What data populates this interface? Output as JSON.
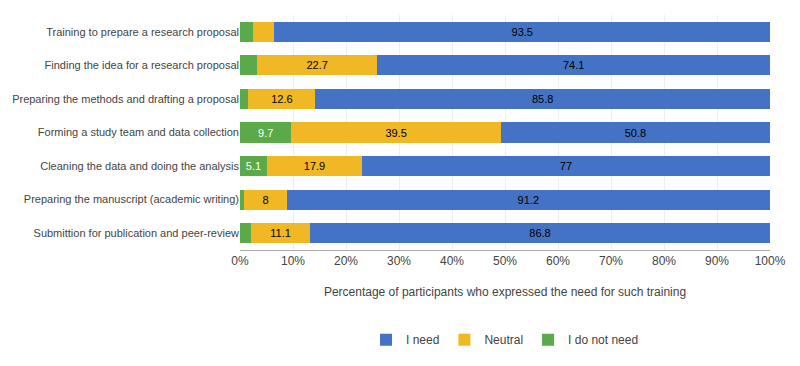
{
  "chart_data": {
    "type": "bar",
    "orientation": "horizontal",
    "stacked": true,
    "categories": [
      "Training to prepare a research proposal",
      "Finding the idea for a research proposal",
      "Preparing the methods and drafting a proposal",
      "Forming a study team and data collection",
      "Cleaning the data and doing the analysis",
      "Preparing the manuscript (academic writing)",
      "Submittion for publication and peer-review"
    ],
    "series": [
      {
        "name": "I do not need",
        "color": "#5aaa4a",
        "values": [
          2.5,
          3.2,
          1.6,
          9.7,
          5.1,
          0.8,
          2.1
        ],
        "value_labels": [
          null,
          null,
          null,
          "9.7",
          "5.1",
          null,
          null
        ]
      },
      {
        "name": "Neutral",
        "color": "#f0b824",
        "values": [
          4.0,
          22.7,
          12.6,
          39.5,
          17.9,
          8.0,
          11.1
        ],
        "value_labels": [
          null,
          "22.7",
          "12.6",
          "39.5",
          "17.9",
          "8",
          "11.1"
        ]
      },
      {
        "name": "I need",
        "color": "#4472c4",
        "values": [
          93.5,
          74.1,
          85.8,
          50.8,
          77.0,
          91.2,
          86.8
        ],
        "value_labels": [
          "93.5",
          "74.1",
          "85.8",
          "50.8",
          "77",
          "91.2",
          "86.8"
        ]
      }
    ],
    "xlabel": "Percentage of participants who expressed the need for such training",
    "xlim": [
      0,
      100
    ],
    "xticks": [
      {
        "value": 0,
        "label": "0%"
      },
      {
        "value": 10,
        "label": "10%"
      },
      {
        "value": 20,
        "label": "20%"
      },
      {
        "value": 30,
        "label": "30%"
      },
      {
        "value": 40,
        "label": "40%"
      },
      {
        "value": 50,
        "label": "50%"
      },
      {
        "value": 60,
        "label": "60%"
      },
      {
        "value": 70,
        "label": "70%"
      },
      {
        "value": 80,
        "label": "80%"
      },
      {
        "value": 90,
        "label": "90%"
      },
      {
        "value": 100,
        "label": "100%"
      }
    ],
    "grid": true,
    "legend": "bottom"
  }
}
